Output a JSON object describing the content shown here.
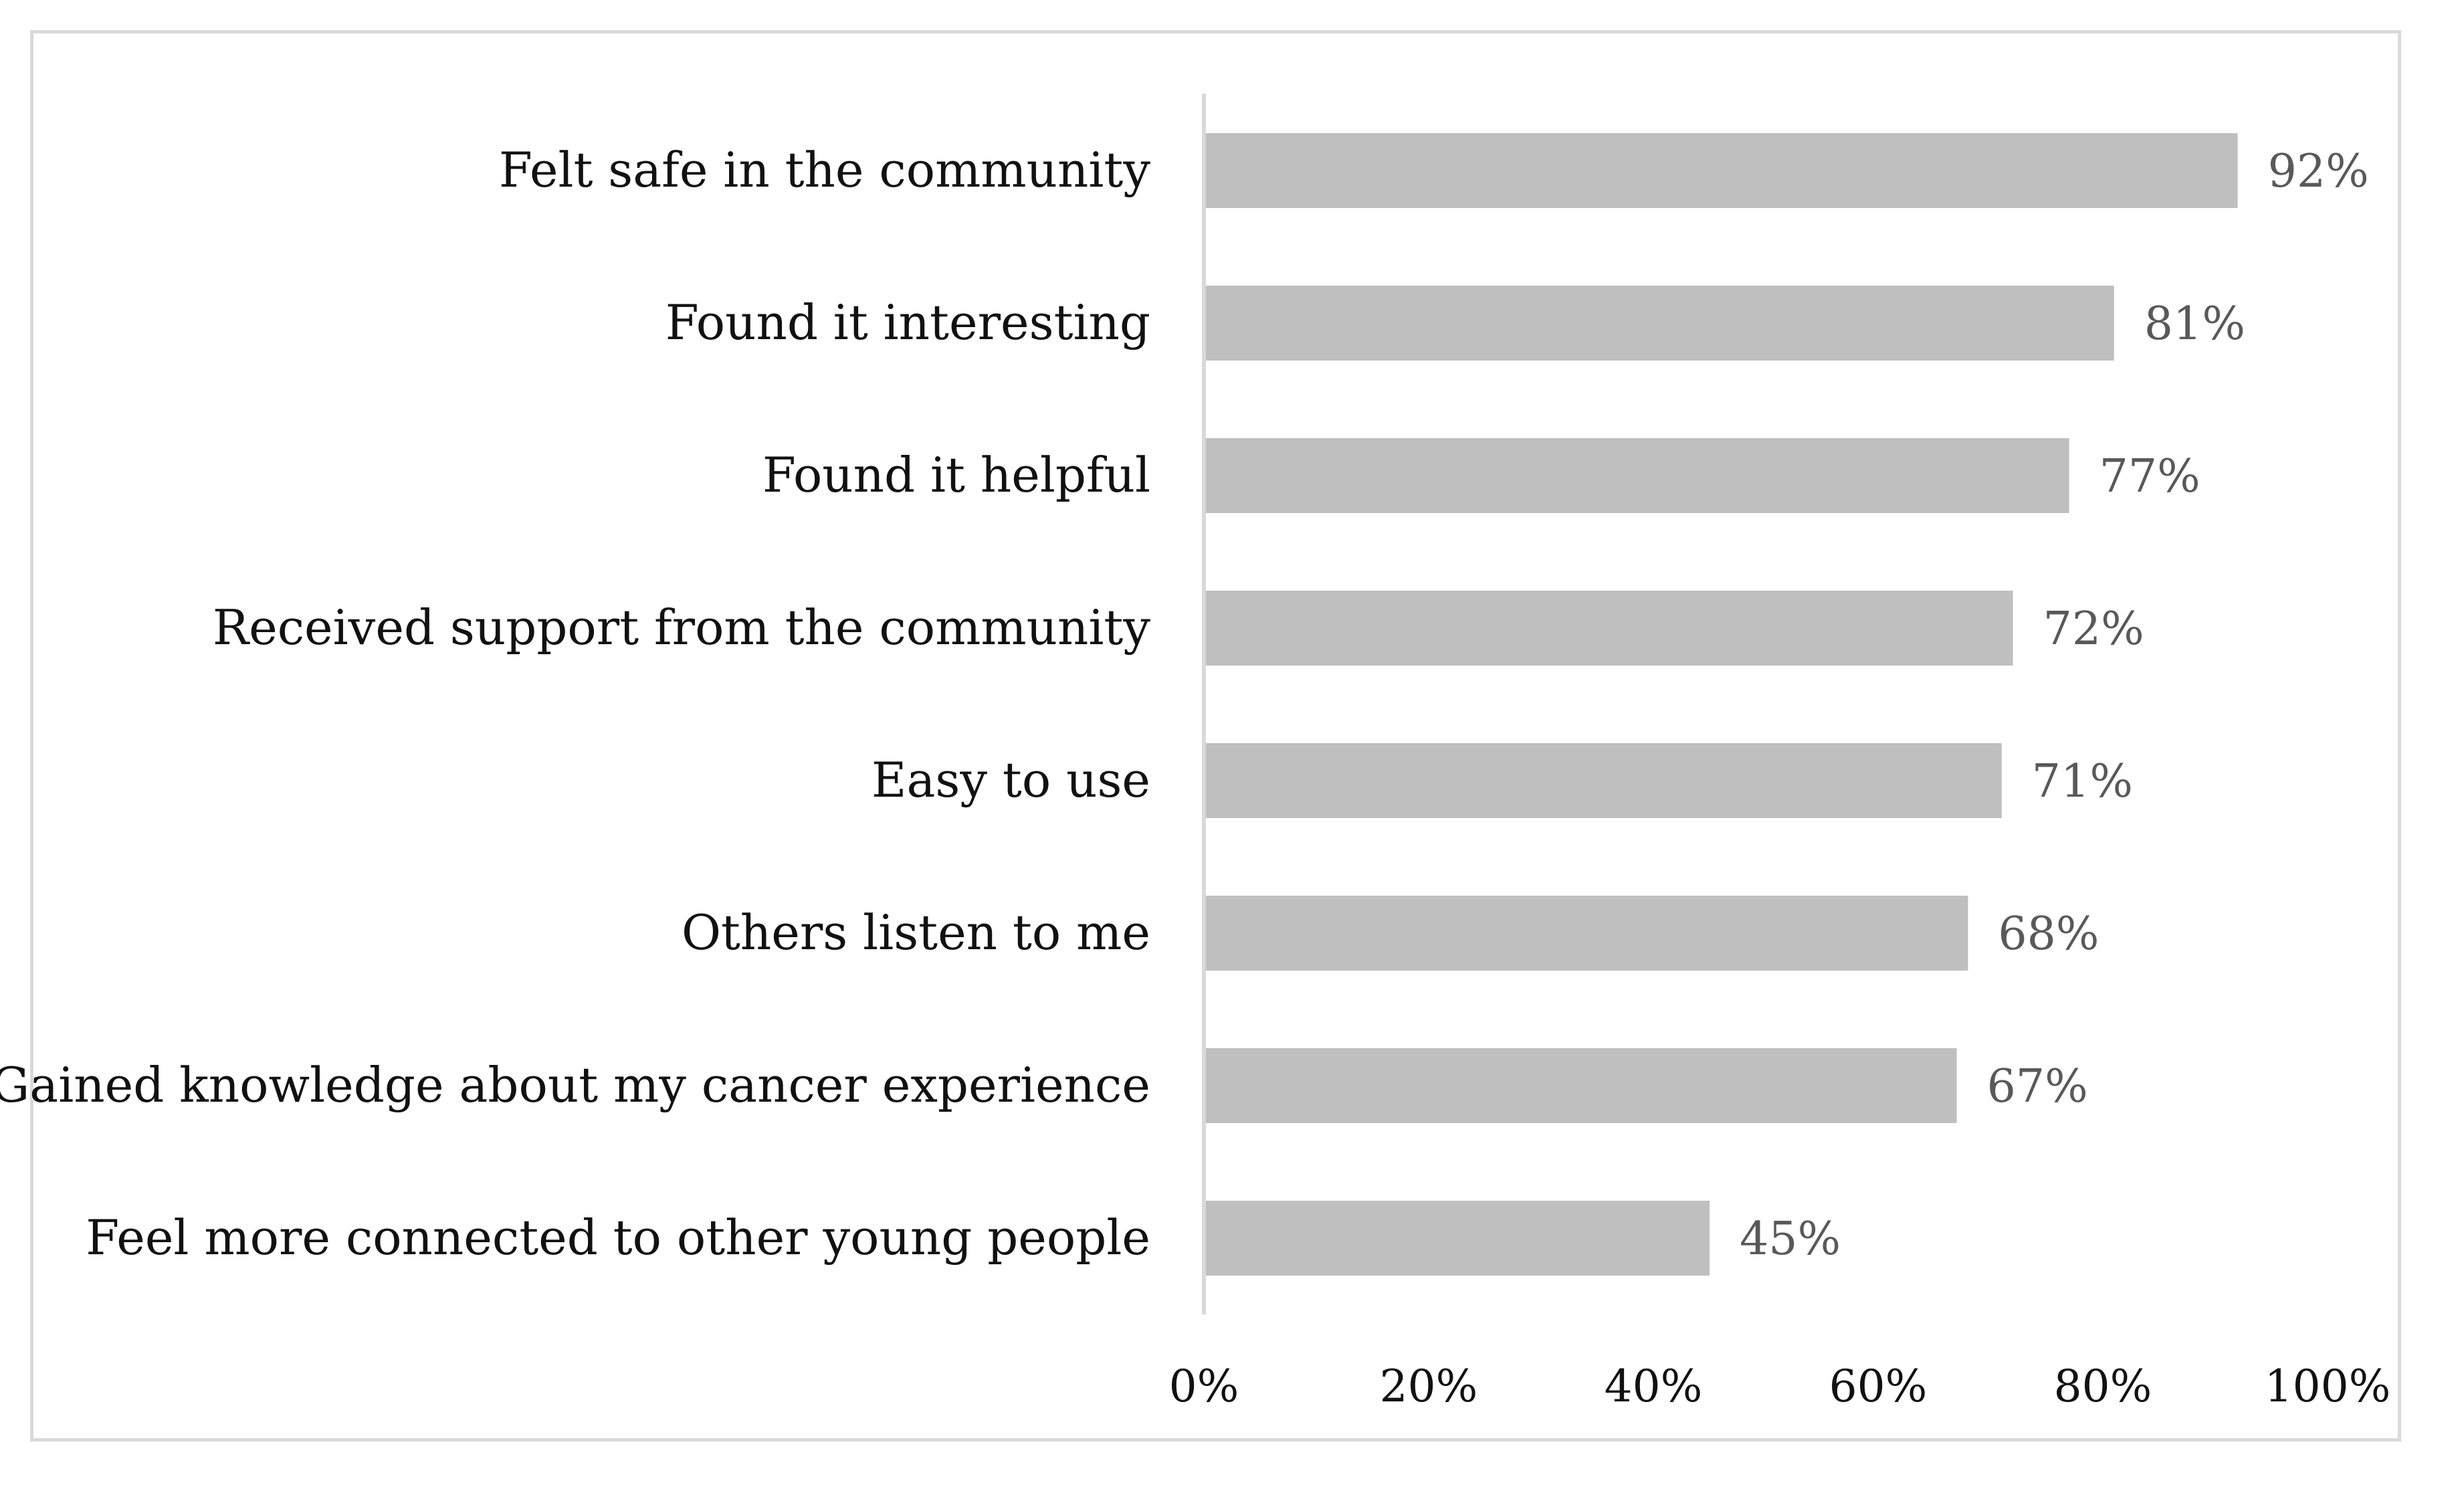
{
  "chart_data": {
    "type": "bar",
    "orientation": "horizontal",
    "categories": [
      "Felt safe in the community",
      "Found it interesting",
      "Found it helpful",
      "Received support from the community",
      "Easy to use",
      "Others listen to me",
      "Gained knowledge about my cancer experience",
      "Feel more connected to other young people"
    ],
    "values": [
      92,
      81,
      77,
      72,
      71,
      68,
      67,
      45
    ],
    "data_labels": [
      "92%",
      "81%",
      "77%",
      "72%",
      "71%",
      "68%",
      "67%",
      "45%"
    ],
    "xlim": [
      0,
      100
    ],
    "x_ticks": [
      0,
      20,
      40,
      60,
      80,
      100
    ],
    "x_tick_labels": [
      "0%",
      "20%",
      "40%",
      "60%",
      "80%",
      "100%"
    ],
    "grid": false,
    "legend": "none",
    "colors": {
      "bar": "#bfbfbf",
      "axis": "#d9d9d9",
      "frame": "#d9d9d9",
      "data_label": "#595959",
      "text": "#111111"
    }
  }
}
